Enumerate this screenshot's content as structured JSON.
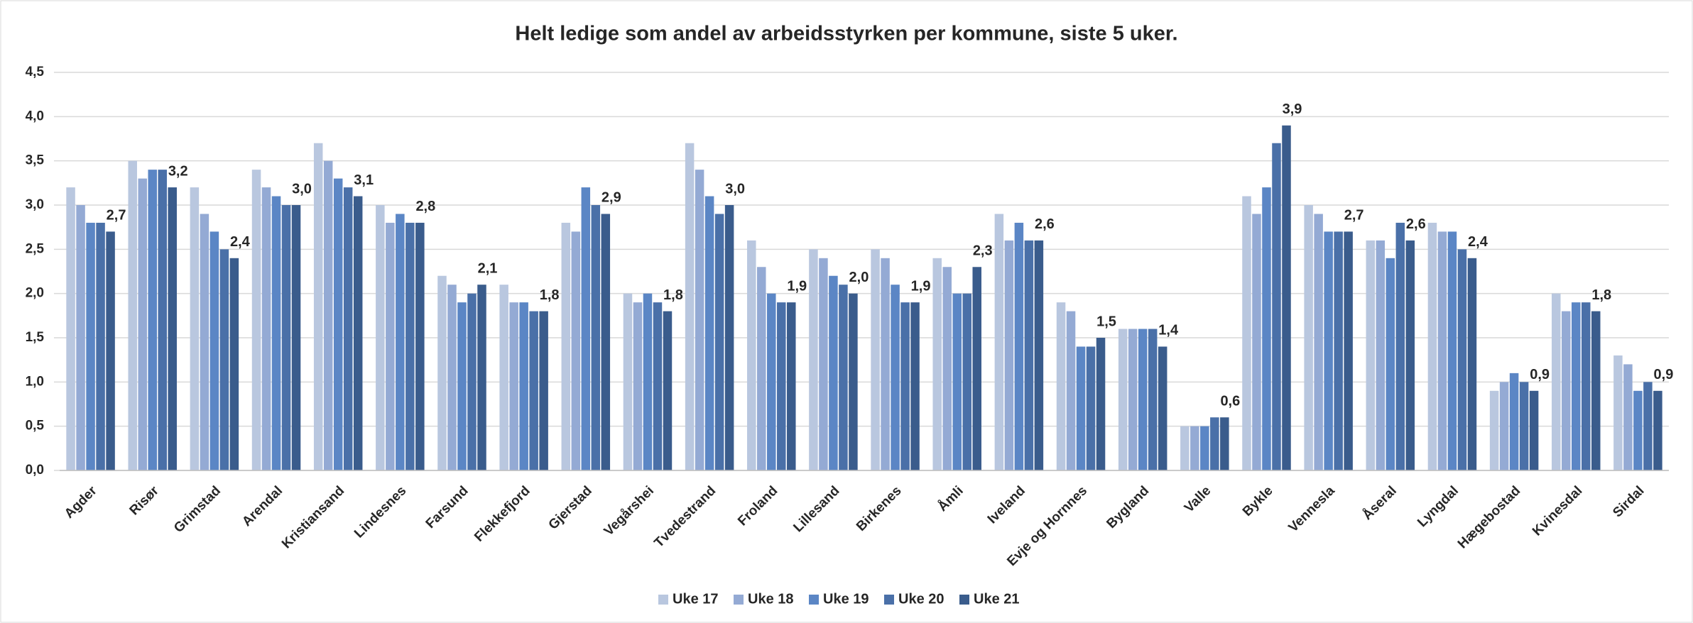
{
  "chart_data": {
    "type": "bar",
    "title": "Helt ledige som andel av arbeidsstyrken per kommune, siste 5 uker.",
    "categories": [
      "Agder",
      "Risør",
      "Grimstad",
      "Arendal",
      "Kristiansand",
      "Lindesnes",
      "Farsund",
      "Flekkefjord",
      "Gjerstad",
      "Vegårshei",
      "Tvedestrand",
      "Froland",
      "Lillesand",
      "Birkenes",
      "Åmli",
      "Iveland",
      "Evje og Hornnes",
      "Bygland",
      "Valle",
      "Bykle",
      "Vennesla",
      "Åseral",
      "Lyngdal",
      "Hægebostad",
      "Kvinesdal",
      "Sirdal"
    ],
    "series": [
      {
        "name": "Uke 17",
        "color": "#b9c7df",
        "values": [
          3.2,
          3.5,
          3.2,
          3.4,
          3.7,
          3.0,
          2.2,
          2.1,
          2.8,
          2.0,
          3.7,
          2.6,
          2.5,
          2.5,
          2.4,
          2.9,
          1.9,
          1.6,
          0.5,
          3.1,
          3.0,
          2.6,
          2.8,
          0.9,
          2.0,
          1.3
        ]
      },
      {
        "name": "Uke 18",
        "color": "#94aad4",
        "values": [
          3.0,
          3.3,
          2.9,
          3.2,
          3.5,
          2.8,
          2.1,
          1.9,
          2.7,
          1.9,
          3.4,
          2.3,
          2.4,
          2.4,
          2.3,
          2.6,
          1.8,
          1.6,
          0.5,
          2.9,
          2.9,
          2.6,
          2.7,
          1.0,
          1.8,
          1.2
        ]
      },
      {
        "name": "Uke 19",
        "color": "#5b86c5",
        "values": [
          2.8,
          3.4,
          2.7,
          3.1,
          3.3,
          2.9,
          1.9,
          1.9,
          3.2,
          2.0,
          3.1,
          2.0,
          2.2,
          2.1,
          2.0,
          2.8,
          1.4,
          1.6,
          0.5,
          3.2,
          2.7,
          2.4,
          2.7,
          1.1,
          1.9,
          0.9
        ]
      },
      {
        "name": "Uke 20",
        "color": "#4a70a8",
        "values": [
          2.8,
          3.4,
          2.5,
          3.0,
          3.2,
          2.8,
          2.0,
          1.8,
          3.0,
          1.9,
          2.9,
          1.9,
          2.1,
          1.9,
          2.0,
          2.6,
          1.4,
          1.6,
          0.6,
          3.7,
          2.7,
          2.8,
          2.5,
          1.0,
          1.9,
          1.0
        ]
      },
      {
        "name": "Uke 21",
        "color": "#3a5c8c",
        "values": [
          2.7,
          3.2,
          2.4,
          3.0,
          3.1,
          2.8,
          2.1,
          1.8,
          2.9,
          1.8,
          3.0,
          1.9,
          2.0,
          1.9,
          2.3,
          2.6,
          1.5,
          1.4,
          0.6,
          3.9,
          2.7,
          2.6,
          2.4,
          0.9,
          1.8,
          0.9
        ],
        "value_labels": [
          "2,7",
          "3,2",
          "2,4",
          "3,0",
          "3,1",
          "2,8",
          "2,1",
          "1,8",
          "2,9",
          "1,8",
          "3,0",
          "1,9",
          "2,0",
          "1,9",
          "2,3",
          "2,6",
          "1,5",
          "1,4",
          "0,6",
          "3,9",
          "2,7",
          "2,6",
          "2,4",
          "0,9",
          "1,8",
          "0,9"
        ]
      }
    ],
    "ylim": [
      0,
      4.5
    ],
    "yticks": [
      {
        "value": 0,
        "label": "0,0"
      },
      {
        "value": 0.5,
        "label": "0,5"
      },
      {
        "value": 1,
        "label": "1,0"
      },
      {
        "value": 1.5,
        "label": "1,5"
      },
      {
        "value": 2,
        "label": "2,0"
      },
      {
        "value": 2.5,
        "label": "2,5"
      },
      {
        "value": 3,
        "label": "3,0"
      },
      {
        "value": 3.5,
        "label": "3,5"
      },
      {
        "value": 4,
        "label": "4,0"
      },
      {
        "value": 4.5,
        "label": "4,5"
      }
    ],
    "grid": true,
    "legend": "bottom"
  }
}
